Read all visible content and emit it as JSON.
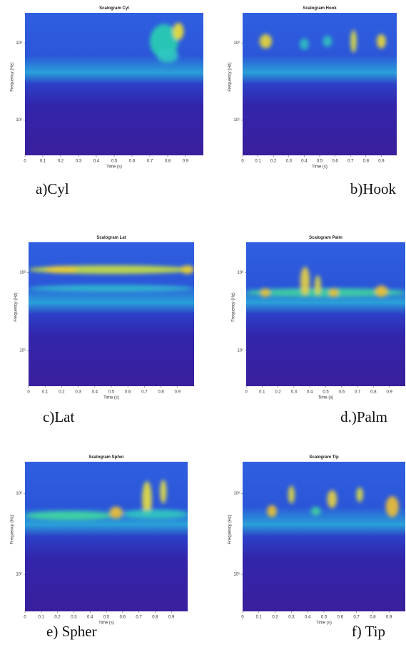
{
  "chart_data": [
    {
      "type": "heatmap",
      "title": "Scalogram Cyl",
      "xlabel": "Time (s)",
      "ylabel": "Frequency (Hz)",
      "caption": "a)Cyl",
      "xlim": [
        0,
        1
      ],
      "xticks": [
        0,
        0.1,
        0.2,
        0.3,
        0.4,
        0.5,
        0.6,
        0.7,
        0.8,
        0.9
      ],
      "yscale": "log",
      "ylim": [
        3.5,
        245
      ],
      "yticks": [
        {
          "value": 10,
          "label": "10¹"
        },
        {
          "value": 100,
          "label": "10²"
        }
      ]
    },
    {
      "type": "heatmap",
      "title": "Scalogram Hook",
      "xlabel": "Time (s)",
      "ylabel": "Frequency (Hz)",
      "caption": "b)Hook",
      "xlim": [
        0,
        1
      ],
      "xticks": [
        0,
        0.1,
        0.2,
        0.3,
        0.4,
        0.5,
        0.6,
        0.7,
        0.8,
        0.9
      ],
      "yscale": "log",
      "ylim": [
        3.5,
        245
      ],
      "yticks": [
        {
          "value": 10,
          "label": "10¹"
        },
        {
          "value": 100,
          "label": "10²"
        }
      ]
    },
    {
      "type": "heatmap",
      "title": "Scalogram Lat",
      "xlabel": "Time (s)",
      "ylabel": "Frequency (Hz)",
      "caption": "c)Lat",
      "xlim": [
        0,
        1
      ],
      "xticks": [
        0,
        0.1,
        0.2,
        0.3,
        0.4,
        0.5,
        0.6,
        0.7,
        0.8,
        0.9
      ],
      "yscale": "log",
      "ylim": [
        3.5,
        245
      ],
      "yticks": [
        {
          "value": 10,
          "label": "10¹"
        },
        {
          "value": 100,
          "label": "10²"
        }
      ]
    },
    {
      "type": "heatmap",
      "title": "Scalogram Palm",
      "xlabel": "Time (s)",
      "ylabel": "Frequency (Hz)",
      "caption": "d.)Palm",
      "xlim": [
        0,
        1
      ],
      "xticks": [
        0,
        0.1,
        0.2,
        0.3,
        0.4,
        0.5,
        0.6,
        0.7,
        0.8,
        0.9
      ],
      "yscale": "log",
      "ylim": [
        3.5,
        245
      ],
      "yticks": [
        {
          "value": 10,
          "label": "10¹"
        },
        {
          "value": 100,
          "label": "10²"
        }
      ]
    },
    {
      "type": "heatmap",
      "title": "Scalogram Spher",
      "xlabel": "Time (s)",
      "ylabel": "Frequency (Hz)",
      "caption": "e) Spher",
      "xlim": [
        0,
        1
      ],
      "xticks": [
        0,
        0.1,
        0.2,
        0.3,
        0.4,
        0.5,
        0.6,
        0.7,
        0.8,
        0.9
      ],
      "yscale": "log",
      "ylim": [
        3.5,
        245
      ],
      "yticks": [
        {
          "value": 10,
          "label": "10¹"
        },
        {
          "value": 100,
          "label": "10²"
        }
      ]
    },
    {
      "type": "heatmap",
      "title": "Scalogram Tip",
      "xlabel": "Time (s)",
      "ylabel": "Frequency (Hz)",
      "caption": "f) Tip",
      "xlim": [
        0,
        1
      ],
      "xticks": [
        0,
        0.1,
        0.2,
        0.3,
        0.4,
        0.5,
        0.6,
        0.7,
        0.8,
        0.9
      ],
      "yscale": "log",
      "ylim": [
        3.5,
        245
      ],
      "yticks": [
        {
          "value": 10,
          "label": "10¹"
        },
        {
          "value": 100,
          "label": "10²"
        }
      ]
    }
  ]
}
